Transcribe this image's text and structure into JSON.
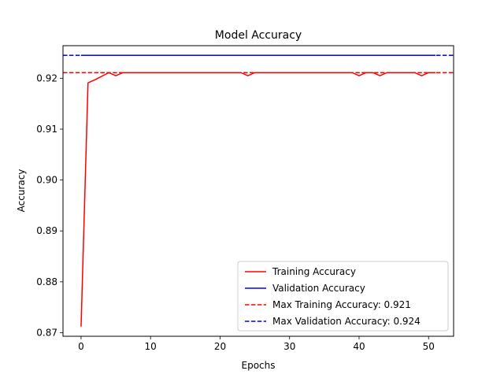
{
  "chart_data": {
    "type": "line",
    "title": "Model Accuracy",
    "xlabel": "Epochs",
    "ylabel": "Accuracy",
    "xlim": [
      -2.6,
      53.6
    ],
    "ylim": [
      0.8693,
      0.9264
    ],
    "xticks": [
      0,
      10,
      20,
      30,
      40,
      50
    ],
    "yticks": [
      0.87,
      0.88,
      0.89,
      0.9,
      0.91,
      0.92
    ],
    "ytick_labels": [
      "0.87",
      "0.88",
      "0.89",
      "0.90",
      "0.91",
      "0.92"
    ],
    "grid": false,
    "legend_position": "lower-right",
    "series": [
      {
        "name": "Training Accuracy",
        "color": "#ff0000",
        "style": "solid",
        "x": [
          0,
          1,
          2,
          3,
          4,
          5,
          6,
          7,
          8,
          9,
          10,
          11,
          12,
          13,
          14,
          15,
          16,
          17,
          18,
          19,
          20,
          21,
          22,
          23,
          24,
          25,
          26,
          27,
          28,
          29,
          30,
          31,
          32,
          33,
          34,
          35,
          36,
          37,
          38,
          39,
          40,
          41,
          42,
          43,
          44,
          45,
          46,
          47,
          48,
          49,
          50,
          51
        ],
        "y": [
          0.8712,
          0.9191,
          0.9197,
          0.9204,
          0.9211,
          0.9205,
          0.9211,
          0.9211,
          0.9211,
          0.9211,
          0.9211,
          0.9211,
          0.9211,
          0.9211,
          0.9211,
          0.9211,
          0.9211,
          0.9211,
          0.9211,
          0.9211,
          0.9211,
          0.9211,
          0.9211,
          0.9211,
          0.9205,
          0.9211,
          0.9211,
          0.9211,
          0.9211,
          0.9211,
          0.9211,
          0.9211,
          0.9211,
          0.9211,
          0.9211,
          0.9211,
          0.9211,
          0.9211,
          0.9211,
          0.9211,
          0.9205,
          0.9211,
          0.9211,
          0.9205,
          0.9211,
          0.9211,
          0.9211,
          0.9211,
          0.9211,
          0.9205,
          0.9211,
          0.9211
        ]
      },
      {
        "name": "Validation Accuracy",
        "color": "#0000ff",
        "style": "solid",
        "x": [
          0,
          51
        ],
        "y": [
          0.9245,
          0.9245
        ]
      }
    ],
    "hlines": [
      {
        "name": "Max Training Accuracy: 0.921",
        "value": 0.9211,
        "color": "#ff0000",
        "style": "dashed"
      },
      {
        "name": "Max Validation Accuracy: 0.924",
        "value": 0.9245,
        "color": "#0000ff",
        "style": "dashed"
      }
    ]
  }
}
